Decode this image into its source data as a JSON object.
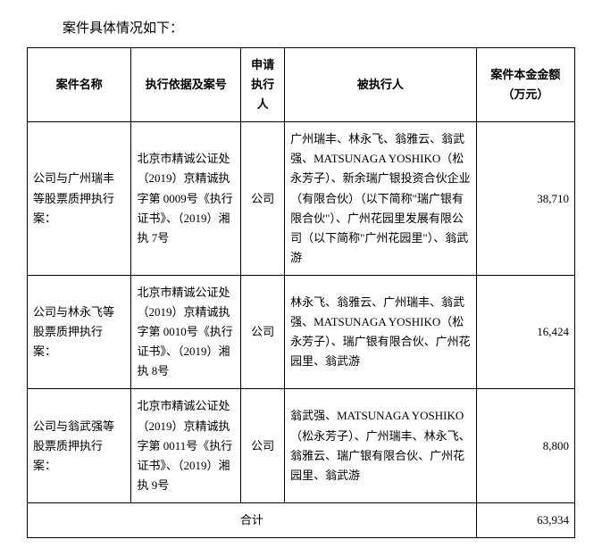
{
  "intro": "案件具体情况如下：",
  "headers": {
    "case_name": "案件名称",
    "basis": "执行依据及案号",
    "applicant": "申请执行人",
    "executed": "被执行人",
    "amount": "案件本金金额（万元）"
  },
  "rows": [
    {
      "case_name": "公司与广州瑞丰等股票质押执行案：",
      "basis": "北京市精诚公证处（2019）京精诚执字第 0009号《执行证书》、（2019）湘执 7号",
      "applicant": "公司",
      "executed": "广州瑞丰、林永飞、翁雅云、翁武强、MATSUNAGA YOSHIKO（松永芳子）、新余瑞广银投资合伙企业（有限合伙）（以下简称\"瑞广银有限合伙\"）、广州花园里发展有限公司（以下简称\"广州花园里\"）、翁武游",
      "amount": "38,710"
    },
    {
      "case_name": "公司与林永飞等股票质押执行案：",
      "basis": "北京市精诚公证处（2019）京精诚执字第 0010号《执行证书》、（2019）湘执 8号",
      "applicant": "公司",
      "executed": "林永飞、翁雅云、广州瑞丰、翁武强、MATSUNAGA YOSHIKO（松永芳子）、瑞广银有限合伙、广州花园里、翁武游",
      "amount": "16,424"
    },
    {
      "case_name": "公司与翁武强等股票质押执行案：",
      "basis": "北京市精诚公证处（2019）京精诚执字第 0011号《执行证书》、（2019）湘执 9号",
      "applicant": "公司",
      "executed": "翁武强、MATSUNAGA YOSHIKO（松永芳子）、广州瑞丰、林永飞、翁雅云、瑞广银有限合伙、广州花园里、翁武游",
      "amount": "8,800"
    }
  ],
  "total": {
    "label": "合计",
    "amount": "63,934"
  }
}
